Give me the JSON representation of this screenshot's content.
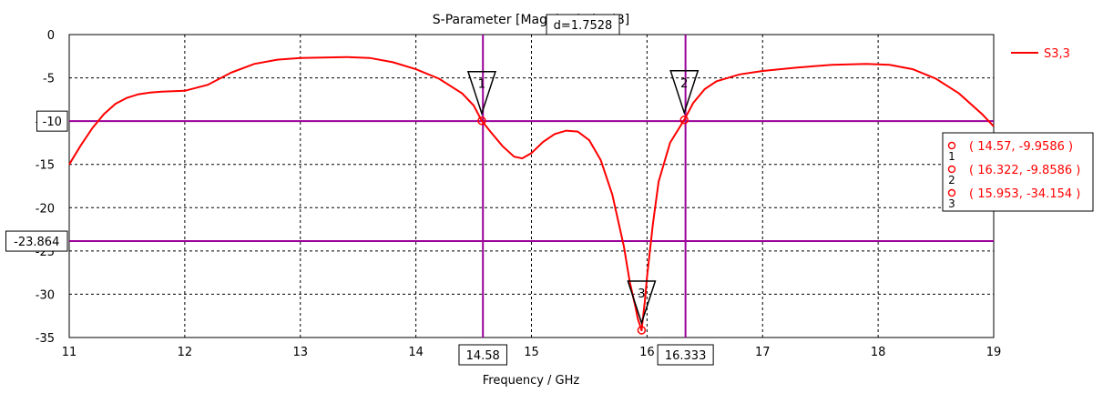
{
  "chart_data": {
    "type": "line",
    "title": "S-Parameter [Magnitude in dB]",
    "xlabel": "Frequency / GHz",
    "ylabel": "",
    "xlim": [
      11,
      19
    ],
    "ylim": [
      -35,
      0
    ],
    "x_ticks": [
      11,
      12,
      13,
      14,
      15,
      16,
      17,
      18,
      19
    ],
    "y_ticks": [
      0,
      -5,
      -10,
      -15,
      -20,
      -25,
      -30,
      -35
    ],
    "grid": true,
    "legend_position": "top-right",
    "series": [
      {
        "name": "S3,3",
        "color": "#ff0000",
        "x": [
          11.0,
          11.1,
          11.2,
          11.3,
          11.4,
          11.5,
          11.6,
          11.7,
          11.8,
          12.0,
          12.2,
          12.4,
          12.6,
          12.8,
          13.0,
          13.2,
          13.4,
          13.6,
          13.8,
          14.0,
          14.2,
          14.4,
          14.5,
          14.57,
          14.65,
          14.75,
          14.85,
          14.92,
          15.0,
          15.1,
          15.2,
          15.3,
          15.4,
          15.5,
          15.6,
          15.7,
          15.8,
          15.85,
          15.9,
          15.92,
          15.953,
          15.98,
          16.0,
          16.05,
          16.1,
          16.2,
          16.322,
          16.4,
          16.5,
          16.6,
          16.8,
          17.0,
          17.3,
          17.6,
          17.9,
          18.1,
          18.3,
          18.5,
          18.7,
          18.9,
          19.0
        ],
        "y": [
          -15.0,
          -12.8,
          -10.8,
          -9.2,
          -8.0,
          -7.3,
          -6.9,
          -6.7,
          -6.6,
          -6.5,
          -5.8,
          -4.4,
          -3.4,
          -2.9,
          -2.7,
          -2.65,
          -2.6,
          -2.7,
          -3.2,
          -4.0,
          -5.1,
          -6.8,
          -8.2,
          -9.9586,
          -11.3,
          -12.9,
          -14.1,
          -14.3,
          -13.7,
          -12.4,
          -11.5,
          -11.1,
          -11.2,
          -12.2,
          -14.5,
          -18.5,
          -24.5,
          -28.5,
          -31.5,
          -32.8,
          -34.154,
          -31.0,
          -28.0,
          -22.0,
          -17.0,
          -12.5,
          -9.8586,
          -7.9,
          -6.3,
          -5.4,
          -4.6,
          -4.2,
          -3.8,
          -3.5,
          -3.4,
          -3.5,
          -4.0,
          -5.1,
          -6.8,
          -9.2,
          -10.6
        ]
      }
    ],
    "markers": [
      {
        "id": "1",
        "x": 14.57,
        "y": -9.9586,
        "label": "( 14.57, -9.9586 )"
      },
      {
        "id": "2",
        "x": 16.322,
        "y": -9.8586,
        "label": "( 16.322, -9.8586 )"
      },
      {
        "id": "3",
        "x": 15.953,
        "y": -34.154,
        "label": "( 15.953, -34.154 )"
      }
    ],
    "vertical_cursors": [
      {
        "x": 14.58,
        "label": "14.58"
      },
      {
        "x": 16.333,
        "label": "16.333"
      }
    ],
    "horizontal_cursors": [
      {
        "y": -10,
        "label": "-10"
      },
      {
        "y": -23.864,
        "label": "-23.864"
      }
    ],
    "delta_label": "d=1.7528",
    "cursor_color": "#990099"
  }
}
